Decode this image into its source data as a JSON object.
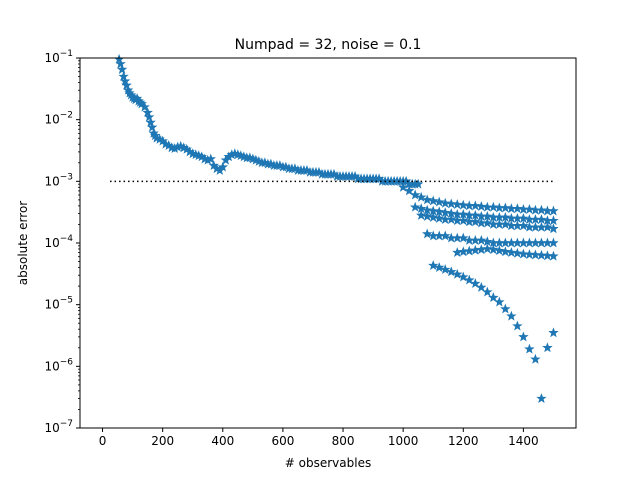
{
  "chart_data": {
    "type": "scatter",
    "title": "Numpad = 32, noise = 0.1",
    "xlabel": "# observables",
    "ylabel": "absolute error",
    "xlim": [
      -75,
      1575
    ],
    "ylim": [
      1e-07,
      0.1
    ],
    "yscale": "log",
    "grid": false,
    "x_ticks": [
      0,
      200,
      400,
      600,
      800,
      1000,
      1200,
      1400
    ],
    "y_ticks": [
      {
        "value": 1e-07,
        "base": "10",
        "exp": "−7"
      },
      {
        "value": 1e-06,
        "base": "10",
        "exp": "−6"
      },
      {
        "value": 1e-05,
        "base": "10",
        "exp": "−5"
      },
      {
        "value": 0.0001,
        "base": "10",
        "exp": "−4"
      },
      {
        "value": 0.001,
        "base": "10",
        "exp": "−3"
      },
      {
        "value": 0.01,
        "base": "10",
        "exp": "−2"
      },
      {
        "value": 0.1,
        "base": "10",
        "exp": "−1"
      }
    ],
    "marker": "star",
    "marker_color": "#1f77b4",
    "threshold": {
      "value": 0.001,
      "x_start": 25,
      "x_end": 1500,
      "style": "dotted",
      "color": "#000000"
    },
    "series": [
      {
        "name": "",
        "x": [
          55,
          60,
          65,
          70,
          75,
          80,
          85,
          90,
          95,
          100,
          105,
          110,
          115,
          120,
          125,
          130,
          140,
          150,
          155,
          160,
          165,
          170,
          175,
          180,
          190,
          200,
          210,
          220,
          230,
          240,
          250,
          260,
          270,
          280,
          290,
          300,
          310,
          320,
          330,
          340,
          350,
          360,
          370,
          380,
          390,
          400,
          410,
          420,
          430,
          440,
          450,
          460,
          470,
          480,
          490,
          500,
          510,
          520,
          530,
          540,
          550,
          560,
          570,
          580,
          590,
          600,
          610,
          620,
          630,
          640,
          650,
          660,
          670,
          680,
          690,
          700,
          710,
          720,
          730,
          740,
          750,
          760,
          770,
          780,
          790,
          800,
          810,
          820,
          830,
          840,
          850,
          860,
          870,
          880,
          890,
          900,
          910,
          920,
          930,
          940,
          950,
          960,
          970,
          980,
          990,
          1000,
          1010,
          1020,
          1030,
          1040,
          1050
        ],
        "y": [
          0.095,
          0.08,
          0.065,
          0.05,
          0.042,
          0.036,
          0.03,
          0.027,
          0.025,
          0.023,
          0.022,
          0.021,
          0.022,
          0.02,
          0.019,
          0.018,
          0.016,
          0.013,
          0.011,
          0.009,
          0.0075,
          0.006,
          0.0055,
          0.005,
          0.0048,
          0.0045,
          0.004,
          0.0038,
          0.0035,
          0.0034,
          0.0036,
          0.0037,
          0.0035,
          0.0033,
          0.003,
          0.0028,
          0.0027,
          0.0026,
          0.0025,
          0.0023,
          0.0022,
          0.0023,
          0.0018,
          0.0016,
          0.0015,
          0.0017,
          0.0022,
          0.0025,
          0.0027,
          0.0028,
          0.0027,
          0.0026,
          0.0025,
          0.0024,
          0.0024,
          0.0023,
          0.0022,
          0.0021,
          0.002,
          0.002,
          0.0019,
          0.0019,
          0.0018,
          0.0018,
          0.0018,
          0.0017,
          0.0017,
          0.0016,
          0.0016,
          0.0016,
          0.0015,
          0.0015,
          0.0015,
          0.0015,
          0.0014,
          0.0014,
          0.0014,
          0.0014,
          0.0013,
          0.0013,
          0.0013,
          0.0013,
          0.0013,
          0.0012,
          0.0012,
          0.0012,
          0.0012,
          0.0012,
          0.0012,
          0.0012,
          0.0011,
          0.0011,
          0.0011,
          0.0011,
          0.0011,
          0.0011,
          0.0011,
          0.0011,
          0.001,
          0.001,
          0.001,
          0.001,
          0.001,
          0.001,
          0.001,
          0.001,
          0.001,
          0.0009,
          0.0009,
          0.0009,
          0.0009
        ]
      },
      {
        "name": "",
        "x": [
          1000,
          1020,
          1040,
          1060,
          1080,
          1100,
          1120,
          1140,
          1160,
          1180,
          1200,
          1220,
          1240,
          1260,
          1280,
          1300,
          1320,
          1340,
          1360,
          1380,
          1400,
          1420,
          1440,
          1460,
          1480,
          1500
        ],
        "y": [
          0.0008,
          0.0007,
          0.0006,
          0.00055,
          0.0005,
          0.00048,
          0.00046,
          0.00044,
          0.00043,
          0.00042,
          0.00041,
          0.0004,
          0.0004,
          0.00039,
          0.00038,
          0.00038,
          0.00037,
          0.00037,
          0.00036,
          0.00036,
          0.00035,
          0.00035,
          0.00034,
          0.00034,
          0.00033,
          0.00033
        ]
      },
      {
        "name": "",
        "x": [
          1040,
          1060,
          1080,
          1100,
          1120,
          1140,
          1160,
          1180,
          1200,
          1220,
          1240,
          1260,
          1280,
          1300,
          1320,
          1340,
          1360,
          1380,
          1400,
          1420,
          1440,
          1460,
          1480,
          1500
        ],
        "y": [
          0.00038,
          0.00036,
          0.00034,
          0.00033,
          0.00032,
          0.00031,
          0.0003,
          0.00029,
          0.00029,
          0.00028,
          0.00028,
          0.00027,
          0.00027,
          0.00026,
          0.00026,
          0.00026,
          0.00025,
          0.00025,
          0.00025,
          0.00024,
          0.00024,
          0.00024,
          0.00023,
          0.00023
        ]
      },
      {
        "name": "",
        "x": [
          1060,
          1080,
          1100,
          1120,
          1140,
          1160,
          1180,
          1200,
          1220,
          1240,
          1260,
          1280,
          1300,
          1320,
          1340,
          1360,
          1380,
          1400,
          1420,
          1440,
          1460,
          1480,
          1500
        ],
        "y": [
          0.00028,
          0.00027,
          0.00026,
          0.00025,
          0.00024,
          0.00024,
          0.00023,
          0.00023,
          0.00022,
          0.00022,
          0.00021,
          0.00021,
          0.0002,
          0.0002,
          0.0002,
          0.00019,
          0.00019,
          0.00019,
          0.00018,
          0.00018,
          0.00018,
          0.00018,
          0.00017
        ]
      },
      {
        "name": "",
        "x": [
          1080,
          1100,
          1120,
          1140,
          1160,
          1180,
          1200,
          1220,
          1240,
          1260,
          1280,
          1300,
          1320,
          1340,
          1360,
          1380,
          1400,
          1420,
          1440,
          1460,
          1480,
          1500
        ],
        "y": [
          0.00014,
          0.00013,
          0.00013,
          0.00013,
          0.00012,
          0.00012,
          0.00012,
          0.00011,
          0.00011,
          0.00011,
          0.000105,
          0.0001,
          0.0001,
          0.0001,
          0.0001,
          0.0001,
          0.0001,
          0.0001,
          0.0001,
          0.0001,
          0.0001,
          0.0001
        ]
      },
      {
        "name": "",
        "x": [
          1180,
          1200,
          1220,
          1240,
          1260,
          1280,
          1300,
          1320,
          1340,
          1360,
          1380,
          1400,
          1420,
          1440,
          1460,
          1480,
          1500
        ],
        "y": [
          7e-05,
          7.2e-05,
          7.4e-05,
          7.6e-05,
          7.8e-05,
          8e-05,
          7.8e-05,
          7.5e-05,
          7.2e-05,
          7e-05,
          6.8e-05,
          6.6e-05,
          6.5e-05,
          6.4e-05,
          6.3e-05,
          6.2e-05,
          6.1e-05
        ]
      },
      {
        "name": "",
        "x": [
          1100,
          1120,
          1140,
          1160,
          1180,
          1200,
          1220,
          1240,
          1260,
          1280,
          1300,
          1320,
          1340,
          1360,
          1380,
          1400,
          1420,
          1440,
          1460,
          1480,
          1500
        ],
        "y": [
          4.3e-05,
          4e-05,
          3.7e-05,
          3.4e-05,
          3.1e-05,
          2.8e-05,
          2.5e-05,
          2.2e-05,
          1.9e-05,
          1.6e-05,
          1.3e-05,
          1.1e-05,
          8.5e-06,
          6.5e-06,
          4.5e-06,
          3e-06,
          1.9e-06,
          1.3e-06,
          3e-07,
          2e-06,
          3.5e-06
        ]
      }
    ]
  }
}
